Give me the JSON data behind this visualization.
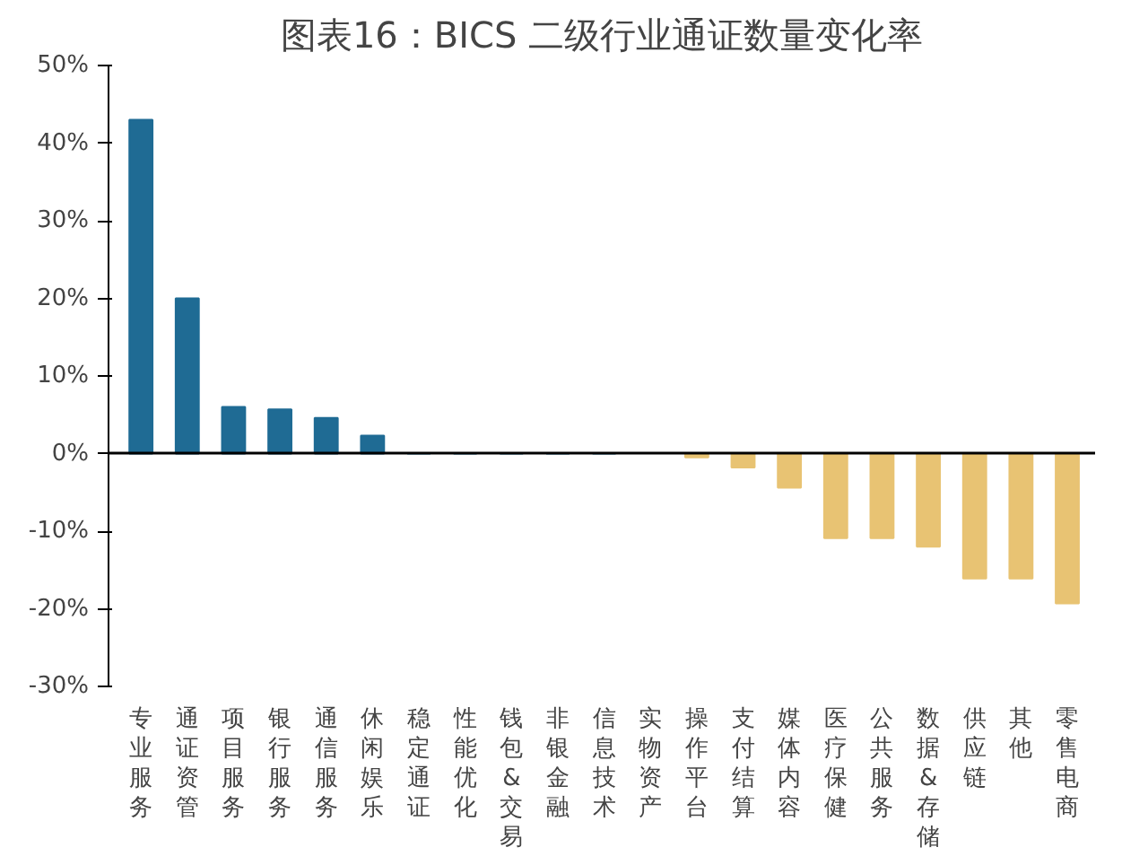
{
  "chart_data": {
    "type": "bar",
    "title": "图表16：BICS 二级行业通证数量变化率",
    "categories": [
      "专业服务",
      "通证资管",
      "项目服务",
      "银行服务",
      "通信服务",
      "休闲娱乐",
      "稳定通证",
      "性能优化",
      "钱包&交易",
      "非银金融",
      "信息技术",
      "实物资产",
      "操作平台",
      "支付结算",
      "媒体内容",
      "医疗保健",
      "公共服务",
      "数据&存储",
      "供应链",
      "其他",
      "零售电商"
    ],
    "values": [
      43,
      20,
      6,
      5.7,
      4.6,
      2.3,
      0,
      0,
      0,
      0,
      0,
      null,
      -0.5,
      -1.8,
      -4.4,
      -10.9,
      -10.9,
      -12,
      -16.1,
      -16.1,
      -19.3
    ],
    "colors": [
      "#1f6b94",
      "#1f6b94",
      "#1f6b94",
      "#1f6b94",
      "#1f6b94",
      "#1f6b94",
      "#1f6b94",
      "#1f6b94",
      "#1f6b94",
      "#1f6b94",
      "#1f6b94",
      "#e8c373",
      "#e8c373",
      "#e8c373",
      "#e8c373",
      "#e8c373",
      "#e8c373",
      "#e8c373",
      "#e8c373",
      "#e8c373",
      "#e8c373"
    ],
    "ylim": [
      -30,
      50
    ],
    "yticks": [
      {
        "value": -30,
        "label": "-30%"
      },
      {
        "value": -20,
        "label": "-20%"
      },
      {
        "value": -10,
        "label": "-10%"
      },
      {
        "value": 0,
        "label": "0%"
      },
      {
        "value": 10,
        "label": "10%"
      },
      {
        "value": 20,
        "label": "20%"
      },
      {
        "value": 30,
        "label": "30%"
      },
      {
        "value": 40,
        "label": "40%"
      },
      {
        "value": 50,
        "label": "50%"
      }
    ],
    "relative": false
  }
}
